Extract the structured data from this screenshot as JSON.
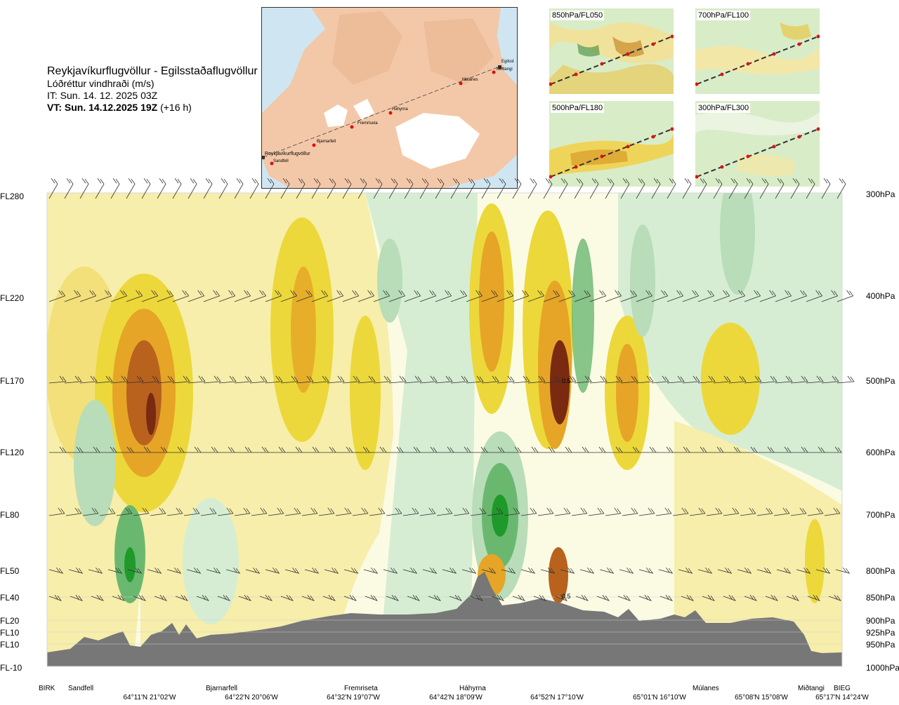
{
  "header": {
    "title": "Reykjavíkurflugvöllur - Egilsstaðaflugvöllur",
    "parameter": "Lóðréttur vindhraði (m/s)",
    "it_line": "IT: Sun. 14. 12. 2025 03Z",
    "vt_bold": "VT: Sun. 14.12.2025 19Z",
    "vt_offset": "(+16 h)"
  },
  "map": {
    "stations": [
      "Reykjavíkurflugvöllur",
      "Sandfell",
      "Bjarnarfell",
      "Fremriseta",
      "Háhyrna",
      "Múlanes",
      "Miðtangi",
      "Egilsst"
    ]
  },
  "thumbnails": [
    {
      "label": "850hPa/FL050"
    },
    {
      "label": "700hPa/FL100"
    },
    {
      "label": "500hPa/FL180"
    },
    {
      "label": "300hPa/FL300"
    }
  ],
  "axes": {
    "left_levels": [
      "FL280",
      "FL220",
      "FL170",
      "FL120",
      "FL80",
      "FL50",
      "FL40",
      "FL20",
      "FL10",
      "FL10",
      "FL-10"
    ],
    "right_levels": [
      "300hPa",
      "400hPa",
      "500hPa",
      "600hPa",
      "700hPa",
      "800hPa",
      "850hPa",
      "900hPa",
      "925hPa",
      "950hPa",
      "1000hPa"
    ]
  },
  "bottom": {
    "locations": [
      "BIRK",
      "Sandfell",
      "Bjarnarfell",
      "Fremriseta",
      "Háhyrna",
      "Múlanes",
      "Miðtangi",
      "BIEG"
    ],
    "coordinates": [
      "64°11'N 21°02'W",
      "64°22'N 20°06'W",
      "64°32'N 19°07'W",
      "64°42'N 18°09'W",
      "64°52'N 17°10'W",
      "65°01'N 16°10'W",
      "65°08'N 15°08'W",
      "65°17'N 14°24'W"
    ]
  },
  "chart_data": {
    "type": "heatmap",
    "title": "Lóðréttur vindhraði (m/s)",
    "y_left_labels": [
      "FL280",
      "FL220",
      "FL170",
      "FL120",
      "FL80",
      "FL50",
      "FL40",
      "FL20",
      "FL10",
      "FL10",
      "FL-10"
    ],
    "y_right_labels": [
      "300hPa",
      "400hPa",
      "500hPa",
      "600hPa",
      "700hPa",
      "800hPa",
      "850hPa",
      "900hPa",
      "925hPa",
      "950hPa",
      "1000hPa"
    ],
    "x_locations": [
      "BIRK",
      "Sandfell",
      "Bjarnarfell",
      "Fremriseta",
      "Háhyrna",
      "Múlanes",
      "Miðtangi",
      "BIEG"
    ],
    "annotations": [
      "0.5",
      "0.5"
    ],
    "colors": {
      "strong_down": "#1f9a2a",
      "down": "#6ab870",
      "weak_down": "#b8ddb8",
      "slight_down": "#d6edd3",
      "neutral": "#fbfbe4",
      "slight_up": "#f6eeaa",
      "weak_up": "#ecd83a",
      "up": "#e6a526",
      "strong_up": "#b8621e",
      "very_strong_up": "#7a2a10",
      "terrain": "#777777"
    }
  }
}
